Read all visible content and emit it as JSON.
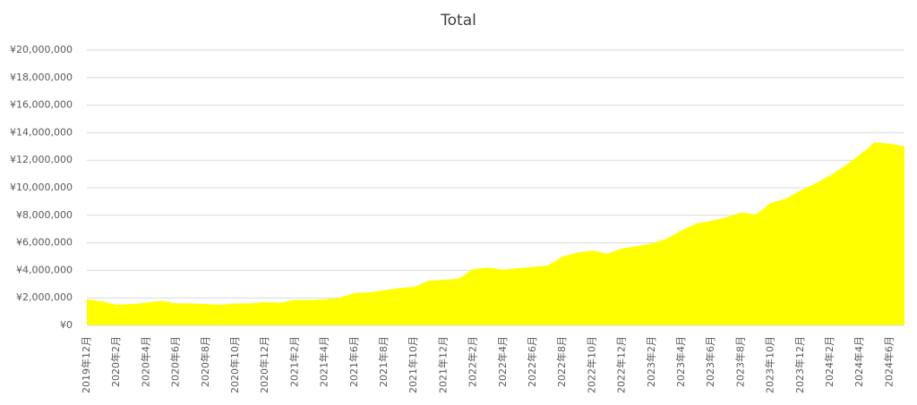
{
  "chart_data": {
    "type": "area",
    "title": "Total",
    "categories": [
      "2019年12月",
      null,
      "2020年2月",
      null,
      "2020年4月",
      null,
      "2020年6月",
      null,
      "2020年8月",
      null,
      "2020年10月",
      null,
      "2020年12月",
      null,
      "2021年2月",
      null,
      "2021年4月",
      null,
      "2021年6月",
      null,
      "2021年8月",
      null,
      "2021年10月",
      null,
      "2021年12月",
      null,
      "2022年2月",
      null,
      "2022年4月",
      null,
      "2022年6月",
      null,
      "2022年8月",
      null,
      "2022年10月",
      null,
      "2022年12月",
      null,
      "2023年2月",
      null,
      "2023年4月",
      null,
      "2023年6月",
      null,
      "2023年8月",
      null,
      "2023年10月",
      null,
      "2023年12月",
      null,
      "2024年2月",
      null,
      "2024年4月",
      null,
      "2024年6月",
      null
    ],
    "values": [
      1900000,
      1750000,
      1500000,
      1550000,
      1650000,
      1800000,
      1600000,
      1600000,
      1550000,
      1500000,
      1600000,
      1600000,
      1700000,
      1650000,
      1850000,
      1850000,
      1900000,
      2000000,
      2350000,
      2400000,
      2550000,
      2700000,
      2800000,
      3250000,
      3300000,
      3400000,
      4100000,
      4200000,
      4050000,
      4150000,
      4250000,
      4350000,
      5000000,
      5300000,
      5450000,
      5200000,
      5600000,
      5750000,
      5950000,
      6300000,
      6900000,
      7400000,
      7600000,
      7850000,
      8200000,
      8050000,
      8900000,
      9200000,
      9800000,
      10300000,
      10900000,
      11600000,
      12400000,
      13300000,
      13200000,
      13000000
    ],
    "color": "#ffff00",
    "ylim": [
      0,
      20000000
    ],
    "yticks": [
      {
        "value": 0,
        "label": "¥0"
      },
      {
        "value": 2000000,
        "label": "¥2,000,000"
      },
      {
        "value": 4000000,
        "label": "¥4,000,000"
      },
      {
        "value": 6000000,
        "label": "¥6,000,000"
      },
      {
        "value": 8000000,
        "label": "¥8,000,000"
      },
      {
        "value": 10000000,
        "label": "¥10,000,000"
      },
      {
        "value": 12000000,
        "label": "¥12,000,000"
      },
      {
        "value": 14000000,
        "label": "¥14,000,000"
      },
      {
        "value": 16000000,
        "label": "¥16,000,000"
      },
      {
        "value": 18000000,
        "label": "¥18,000,000"
      },
      {
        "value": 20000000,
        "label": "¥20,000,000"
      }
    ],
    "grid": true
  }
}
